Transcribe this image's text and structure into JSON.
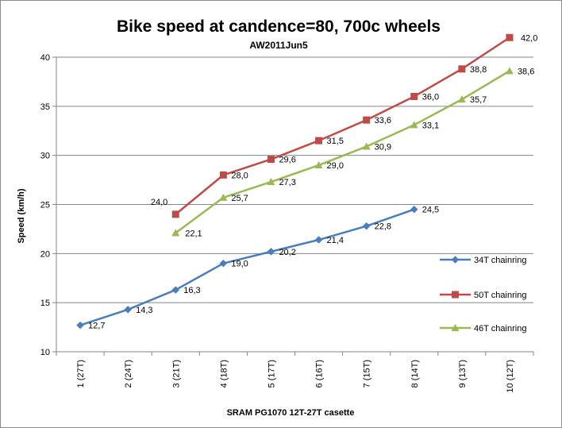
{
  "chart_data": {
    "type": "line",
    "title": "Bike speed at candence=80, 700c wheels",
    "subtitle": "AW2011Jun5",
    "xlabel": "SRAM PG1070 12T-27T casette",
    "ylabel": "Speed (km/h)",
    "categories": [
      "1 (27T)",
      "2 (24T)",
      "3 (21T)",
      "4 (18T)",
      "5 (17T)",
      "6 (16T)",
      "7 (15T)",
      "8 (14T)",
      "9 (13T)",
      "10 (12T)"
    ],
    "ylim": [
      10,
      40
    ],
    "yticks": [
      10,
      15,
      20,
      25,
      30,
      35,
      40
    ],
    "grid": true,
    "legend": "right",
    "series": [
      {
        "name": "34T chainring",
        "color": "#4a7ebb",
        "marker": "diamond",
        "values": [
          12.7,
          14.3,
          16.3,
          19.0,
          20.2,
          21.4,
          22.8,
          24.5,
          null,
          null
        ],
        "labels": [
          "12,7",
          "14,3",
          "16,3",
          "19,0",
          "20,2",
          "21,4",
          "22,8",
          "24,5",
          "",
          ""
        ]
      },
      {
        "name": "50T chainring",
        "color": "#be4b48",
        "marker": "square",
        "values": [
          null,
          null,
          24.0,
          28.0,
          29.6,
          31.5,
          33.6,
          36.0,
          38.8,
          42.0
        ],
        "labels": [
          "",
          "",
          "24,0",
          "28,0",
          "29,6",
          "31,5",
          "33,6",
          "36,0",
          "38,8",
          "42,0"
        ]
      },
      {
        "name": "46T chainring",
        "color": "#98b954",
        "marker": "triangle",
        "values": [
          null,
          null,
          22.1,
          25.7,
          27.3,
          29.0,
          30.9,
          33.1,
          35.7,
          38.6
        ],
        "labels": [
          "",
          "",
          "22,1",
          "25,7",
          "27,3",
          "29,0",
          "30,9",
          "33,1",
          "35,7",
          "38,6"
        ]
      }
    ]
  }
}
